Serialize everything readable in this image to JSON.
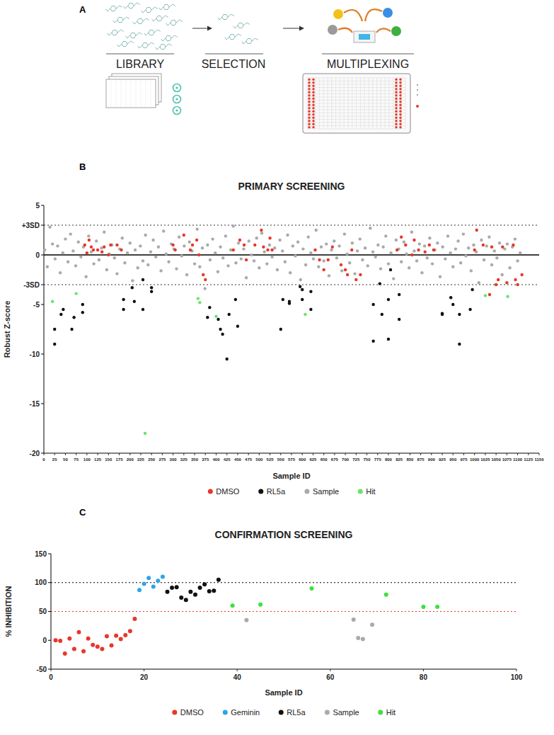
{
  "figure": {
    "panel_labels": [
      "A",
      "B",
      "C"
    ]
  },
  "diagram": {
    "steps": [
      "LIBRARY",
      "SELECTION",
      "MULTIPLEXING"
    ]
  },
  "chart_data": [
    {
      "type": "scatter",
      "title": "PRIMARY SCREENING",
      "x_label": "Sample ID",
      "y_label": "Robust Z-score",
      "xlim": [
        0,
        1150
      ],
      "ylim": [
        -20,
        5
      ],
      "xticks": [
        0,
        25,
        50,
        75,
        100,
        125,
        150,
        175,
        200,
        225,
        250,
        275,
        300,
        325,
        350,
        375,
        400,
        425,
        450,
        475,
        500,
        525,
        550,
        575,
        600,
        625,
        650,
        675,
        700,
        725,
        750,
        775,
        800,
        825,
        850,
        875,
        900,
        925,
        950,
        975,
        1000,
        1025,
        1050,
        1075,
        1100,
        1125,
        1150
      ],
      "yticks": [
        -20,
        -15,
        -10,
        -5,
        {
          "value": -3,
          "label": "-3SD"
        },
        0,
        {
          "value": 3,
          "label": "+3SD"
        },
        5
      ],
      "grid": false,
      "legend": "bottom",
      "marker": "circle",
      "reference_lines": [
        {
          "value": 3,
          "line_style": "dotted",
          "color": "#333333"
        },
        {
          "value": 0,
          "line_style": "solid",
          "color": "#000000"
        },
        {
          "value": -3,
          "line_style": "dotted",
          "color": "#333333"
        }
      ],
      "series": [
        {
          "name": "DMSO",
          "color": "#e8372a",
          "x": [
            95,
            100,
            105,
            110,
            115,
            125,
            135,
            140,
            150,
            155,
            170,
            180,
            300,
            305,
            325,
            340,
            345,
            355,
            360,
            370,
            375,
            440,
            455,
            465,
            470,
            490,
            505,
            510,
            520,
            525,
            530,
            630,
            640,
            650,
            660,
            670,
            690,
            700,
            705,
            715,
            725,
            735,
            820,
            830,
            840,
            855,
            860,
            870,
            885,
            895,
            905,
            1000,
            1005,
            1020,
            1035,
            1040,
            1050,
            1055,
            1065,
            1075,
            1090,
            1095,
            1100,
            1110
          ],
          "values": [
            1,
            0.2,
            1.5,
            0.8,
            0.5,
            0.5,
            0.3,
            0.8,
            0,
            1,
            1,
            0.5,
            1,
            0.5,
            2,
            0.5,
            1,
            1.5,
            0,
            -2,
            -2.5,
            0.5,
            1.5,
            1,
            -0.5,
            1,
            2.5,
            0.8,
            0.5,
            1.7,
            0.5,
            0.5,
            -0.5,
            -1.5,
            -0.5,
            0.8,
            -1,
            -1.5,
            -2,
            0.5,
            -2.5,
            -2,
            0.5,
            1.8,
            1,
            0,
            1.5,
            0.5,
            0.3,
            1,
            0.5,
            0.5,
            2.5,
            1,
            -4,
            0.8,
            -3,
            -2.5,
            0.8,
            -2.8,
            1,
            -2.5,
            -3,
            -2
          ]
        },
        {
          "name": "RL5a",
          "color": "#111111",
          "x": [
            25,
            25,
            45,
            40,
            65,
            70,
            90,
            90,
            185,
            185,
            205,
            210,
            230,
            230,
            250,
            250,
            380,
            385,
            405,
            410,
            415,
            425,
            430,
            445,
            450,
            550,
            555,
            570,
            570,
            595,
            600,
            600,
            620,
            620,
            765,
            765,
            780,
            785,
            800,
            800,
            805,
            825,
            825,
            925,
            925,
            945,
            950,
            965,
            965,
            990,
            995
          ],
          "values": [
            -9,
            -7.5,
            -5.5,
            -6,
            -7.5,
            -6.3,
            -5.8,
            -5,
            -4.5,
            -5.5,
            -3.3,
            -4.7,
            -5.5,
            -2.5,
            -3.7,
            -3.3,
            -6.3,
            -5.3,
            -6.5,
            -7.5,
            -8,
            -10.5,
            -6,
            -4.5,
            -7.2,
            -7.5,
            -4.5,
            -4.7,
            -4.9,
            -3.2,
            -4.5,
            -3.5,
            -5.5,
            -3.7,
            -5,
            -8.7,
            -2.9,
            -6,
            -8.5,
            -4.5,
            -1.5,
            -4,
            -6.5,
            -5.9,
            -6,
            -4.3,
            -5,
            -6,
            -9,
            -5.5,
            -3.5
          ]
        },
        {
          "name": "Sample",
          "color": "#aaaaaa",
          "x": [
            2,
            8,
            14,
            20,
            26,
            32,
            38,
            44,
            50,
            56,
            62,
            68,
            74,
            80,
            86,
            92,
            98,
            104,
            110,
            116,
            122,
            128,
            134,
            140,
            146,
            152,
            158,
            164,
            170,
            176,
            182,
            188,
            194,
            200,
            206,
            212,
            218,
            224,
            230,
            236,
            242,
            248,
            254,
            260,
            266,
            272,
            278,
            284,
            290,
            296,
            302,
            308,
            314,
            320,
            326,
            332,
            338,
            344,
            350,
            356,
            362,
            368,
            374,
            380,
            386,
            392,
            398,
            404,
            410,
            416,
            422,
            428,
            434,
            440,
            446,
            452,
            458,
            464,
            470,
            476,
            482,
            488,
            494,
            500,
            506,
            512,
            518,
            524,
            530,
            536,
            542,
            548,
            554,
            560,
            566,
            572,
            578,
            584,
            590,
            596,
            602,
            608,
            614,
            620,
            626,
            632,
            638,
            644,
            650,
            656,
            662,
            668,
            674,
            680,
            686,
            692,
            698,
            704,
            710,
            716,
            722,
            728,
            734,
            740,
            746,
            752,
            758,
            764,
            770,
            776,
            782,
            788,
            794,
            800,
            806,
            812,
            818,
            824,
            830,
            836,
            842,
            848,
            854,
            860,
            866,
            872,
            878,
            884,
            890,
            896,
            902,
            908,
            914,
            920,
            926,
            932,
            938,
            944,
            950,
            956,
            962,
            968,
            974,
            980,
            986,
            992,
            998,
            1004,
            1010,
            1016,
            1022,
            1028,
            1034,
            1040,
            1046,
            1052,
            1058,
            1064,
            1070,
            1076,
            1082,
            1088,
            1094,
            1100,
            1106
          ],
          "values": [
            0.5,
            -1.2,
            2.8,
            1.1,
            -0.4,
            0.9,
            -1.8,
            0.2,
            1.6,
            -0.7,
            2.1,
            0.4,
            -1.1,
            1.3,
            -0.2,
            0.8,
            -2.2,
            1.9,
            0.3,
            -0.9,
            1.4,
            -0.5,
            0.7,
            2.3,
            -1.5,
            0.1,
            1.0,
            -0.3,
            -1.9,
            0.6,
            1.7,
            -0.8,
            0.2,
            1.2,
            -2.6,
            0.5,
            -1.3,
            0.9,
            -0.6,
            2.0,
            -1.0,
            0.3,
            1.5,
            -0.2,
            0.8,
            -1.6,
            2.4,
            0.1,
            -0.7,
            1.1,
            0.6,
            -1.4,
            1.8,
            -0.1,
            0.9,
            -2.0,
            1.3,
            0.4,
            -0.9,
            2.6,
            -1.2,
            0.7,
            -3.4,
            1.0,
            -0.5,
            1.6,
            0.2,
            -1.7,
            0.8,
            -0.3,
            1.9,
            -1.1,
            0.5,
            2.9,
            -0.8,
            1.2,
            -0.4,
            0.6,
            -2.3,
            1.4,
            0.0,
            -0.6,
            1.7,
            -1.3,
            2.2,
            0.3,
            -0.9,
            1.0,
            -0.2,
            0.7,
            -1.5,
            1.5,
            0.4,
            -0.7,
            2.0,
            -1.8,
            0.9,
            -0.1,
            1.3,
            -2.5,
            0.6,
            -1.0,
            1.8,
            0.2,
            -0.4,
            2.5,
            -1.2,
            0.8,
            -0.6,
            1.1,
            -2.1,
            0.5,
            1.4,
            -0.3,
            0.9,
            -1.6,
            2.1,
            0.1,
            -0.8,
            1.2,
            -1.9,
            0.4,
            1.6,
            -0.5,
            0.7,
            -1.1,
            2.7,
            0.3,
            -0.2,
            1.0,
            -1.4,
            0.8,
            1.9,
            -0.9,
            0.2,
            -2.4,
            1.5,
            0.6,
            -0.7,
            1.3,
            0.1,
            -1.3,
            2.3,
            0.4,
            -0.6,
            1.1,
            -1.8,
            0.9,
            -0.3,
            1.7,
            -0.9,
            0.5,
            1.2,
            -2.2,
            0.8,
            -0.4,
            1.9,
            0.2,
            -1.2,
            0.6,
            1.4,
            -0.8,
            2.1,
            -0.1,
            0.7,
            -1.6,
            1.0,
            0.3,
            -2.8,
            1.5,
            -0.5,
            0.9,
            1.8,
            -1.0,
            0.4,
            -0.3,
            1.2,
            -2.0,
            0.6,
            1.1,
            -1.3,
            0.8,
            1.6,
            -0.6,
            0.2
          ]
        },
        {
          "name": "Hit",
          "color": "#6be36b",
          "x": [
            20,
            75,
            235,
            358,
            362,
            400,
            607,
            1025,
            1077
          ],
          "values": [
            -4.7,
            -3.9,
            -18.0,
            -4.4,
            -4.8,
            -6.2,
            -6.0,
            -4.1,
            -4.2
          ]
        }
      ]
    },
    {
      "type": "scatter",
      "title": "CONFIRMATION SCREENING",
      "x_label": "Sample ID",
      "y_label": "% INHIBITION",
      "xlim": [
        0,
        100
      ],
      "ylim": [
        -50,
        150
      ],
      "xticks": [
        0,
        20,
        40,
        60,
        80,
        100
      ],
      "yticks": [
        -50,
        0,
        50,
        100,
        150
      ],
      "grid": false,
      "legend": "bottom",
      "marker": "circle",
      "reference_lines": [
        {
          "value": 100,
          "line_style": "dotted",
          "color": "#000000"
        },
        {
          "value": 50,
          "line_style": "dotted",
          "color": "#e8372a"
        }
      ],
      "series": [
        {
          "name": "DMSO",
          "color": "#e8372a",
          "x": [
            1,
            2,
            3,
            4,
            5,
            6,
            7,
            8,
            9,
            10,
            11,
            12,
            13,
            14,
            15,
            16,
            17,
            18
          ],
          "values": [
            0,
            -1,
            -23,
            3,
            -15,
            14,
            -19,
            3,
            -8,
            -11,
            -15,
            7,
            -9,
            8,
            2,
            9,
            16,
            37
          ]
        },
        {
          "name": "Geminin",
          "color": "#2aa5e8",
          "x": [
            19,
            20,
            21,
            22,
            23,
            24
          ],
          "values": [
            87,
            98,
            108,
            93,
            103,
            110
          ]
        },
        {
          "name": "RL5a",
          "color": "#111111",
          "x": [
            25,
            26,
            27,
            28,
            29,
            30,
            31,
            32,
            33,
            34,
            35,
            36
          ],
          "values": [
            84,
            91,
            92,
            74,
            70,
            84,
            79,
            91,
            97,
            85,
            86,
            105
          ]
        },
        {
          "name": "Sample",
          "color": "#aaaaaa",
          "x": [
            42,
            65,
            66,
            67,
            69
          ],
          "values": [
            35,
            36,
            4,
            2,
            27
          ]
        },
        {
          "name": "Hit",
          "color": "#3ee03e",
          "x": [
            39,
            45,
            56,
            72,
            80,
            83
          ],
          "values": [
            60,
            62,
            90,
            79,
            58,
            58
          ]
        }
      ]
    }
  ]
}
